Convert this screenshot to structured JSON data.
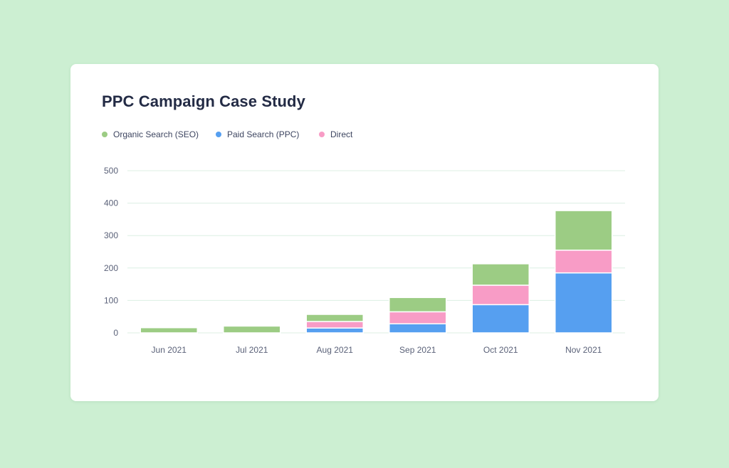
{
  "colors": {
    "page_background": "#ccefd2",
    "card_background": "#ffffff",
    "gridline": "#dcefe3",
    "organic": "#9ccc84",
    "paid": "#569ff0",
    "direct": "#f89cc6"
  },
  "chart_data": {
    "type": "bar",
    "stacked": true,
    "title": "PPC Campaign Case Study",
    "categories": [
      "Jun 2021",
      "Jul 2021",
      "Aug 2021",
      "Sep 2021",
      "Oct 2021",
      "Nov 2021"
    ],
    "series": [
      {
        "name": "Paid Search (PPC)",
        "color": "#569ff0",
        "values": [
          0,
          0,
          15,
          28,
          87,
          185
        ]
      },
      {
        "name": "Direct",
        "color": "#f89cc6",
        "values": [
          0,
          0,
          20,
          37,
          60,
          70
        ]
      },
      {
        "name": "Organic Search (SEO)",
        "color": "#9ccc84",
        "values": [
          16,
          21,
          22,
          44,
          66,
          122
        ]
      }
    ],
    "legend": [
      "Organic Search (SEO)",
      "Paid Search (PPC)",
      "Direct"
    ],
    "legend_placement": "top-left",
    "yticks": [
      0,
      100,
      200,
      300,
      400,
      500
    ],
    "ylim": [
      0,
      500
    ],
    "xlabel": "",
    "ylabel": "",
    "grid": true
  }
}
